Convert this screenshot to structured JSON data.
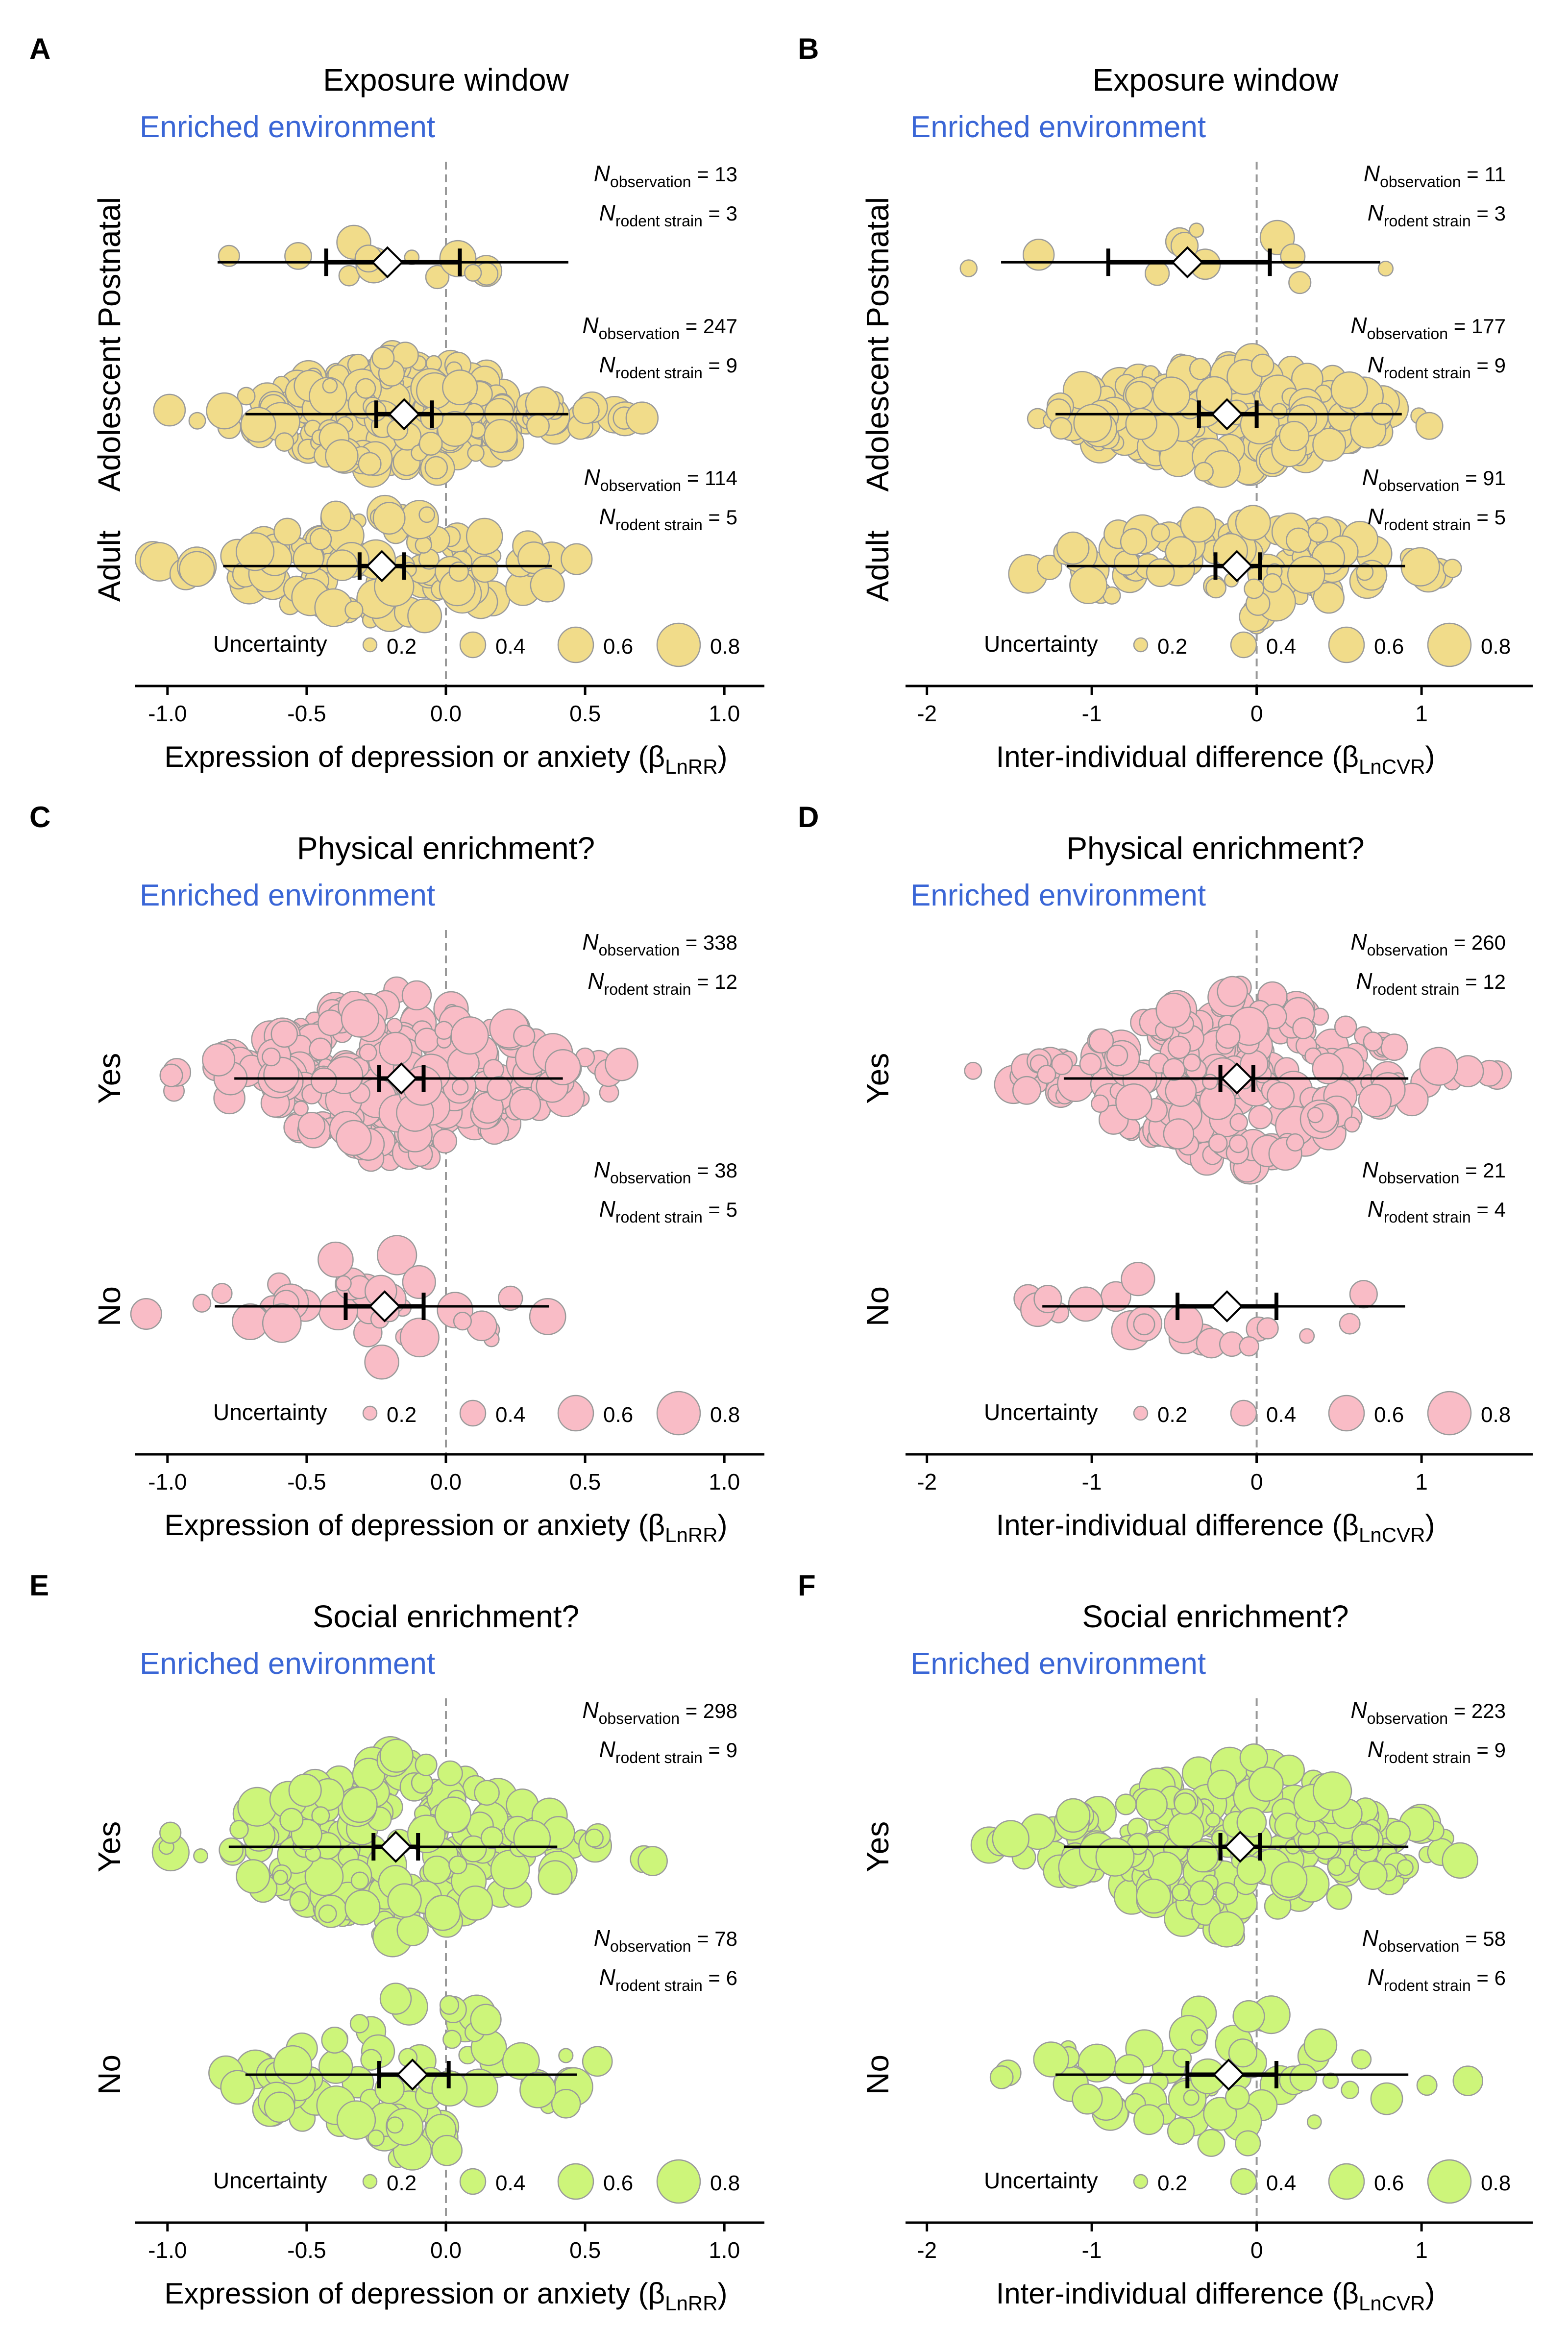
{
  "figure": {
    "panels": [
      {
        "id": "A",
        "title": "Exposure window",
        "subtitle": "Enriched environment",
        "subtitle_color": "#3a66d6",
        "xlabel_main": "Expression of depression or anxiety (",
        "xlabel_sub": "LnRR",
        "xlabel_greek": "β",
        "ticks": [
          "-1.0",
          "-0.5",
          "0.0",
          "0.5",
          "1.0"
        ],
        "tick_values": [
          -1.0,
          -0.5,
          0.0,
          0.5,
          1.0
        ],
        "bubble_color": "#f1dc8a",
        "legend": {
          "label": "Uncertainty",
          "values": [
            "0.2",
            "0.4",
            "0.6",
            "0.8"
          ]
        },
        "groups": [
          {
            "label": "Postnatal",
            "n_observation": "13",
            "n_rodent_strain": "3"
          },
          {
            "label": "Adolescent",
            "n_observation": "247",
            "n_rodent_strain": "9"
          },
          {
            "label": "Adult",
            "n_observation": "114",
            "n_rodent_strain": "5"
          }
        ]
      },
      {
        "id": "B",
        "title": "Exposure window",
        "subtitle": "Enriched environment",
        "subtitle_color": "#3a66d6",
        "xlabel_main": "Inter-individual difference (",
        "xlabel_sub": "LnCVR",
        "xlabel_greek": "β",
        "ticks": [
          "-2",
          "-1",
          "0",
          "1"
        ],
        "tick_values": [
          -2,
          -1,
          0,
          1
        ],
        "bubble_color": "#f1dc8a",
        "legend": {
          "label": "Uncertainty",
          "values": [
            "0.2",
            "0.4",
            "0.6",
            "0.8"
          ]
        },
        "groups": [
          {
            "label": "Postnatal",
            "n_observation": "11",
            "n_rodent_strain": "3"
          },
          {
            "label": "Adolescent",
            "n_observation": "177",
            "n_rodent_strain": "9"
          },
          {
            "label": "Adult",
            "n_observation": "91",
            "n_rodent_strain": "5"
          }
        ]
      },
      {
        "id": "C",
        "title": "Physical enrichment?",
        "subtitle": "Enriched environment",
        "subtitle_color": "#3a66d6",
        "xlabel_main": "Expression of depression or anxiety (",
        "xlabel_sub": "LnRR",
        "xlabel_greek": "β",
        "ticks": [
          "-1.0",
          "-0.5",
          "0.0",
          "0.5",
          "1.0"
        ],
        "tick_values": [
          -1.0,
          -0.5,
          0.0,
          0.5,
          1.0
        ],
        "bubble_color": "#f9bcc6",
        "legend": {
          "label": "Uncertainty",
          "values": [
            "0.2",
            "0.4",
            "0.6",
            "0.8"
          ]
        },
        "groups": [
          {
            "label": "Yes",
            "n_observation": "338",
            "n_rodent_strain": "12"
          },
          {
            "label": "No",
            "n_observation": "38",
            "n_rodent_strain": "5"
          }
        ]
      },
      {
        "id": "D",
        "title": "Physical enrichment?",
        "subtitle": "Enriched environment",
        "subtitle_color": "#3a66d6",
        "xlabel_main": "Inter-individual difference (",
        "xlabel_sub": "LnCVR",
        "xlabel_greek": "β",
        "ticks": [
          "-2",
          "-1",
          "0",
          "1"
        ],
        "tick_values": [
          -2,
          -1,
          0,
          1
        ],
        "bubble_color": "#f9bcc6",
        "legend": {
          "label": "Uncertainty",
          "values": [
            "0.2",
            "0.4",
            "0.6",
            "0.8"
          ]
        },
        "groups": [
          {
            "label": "Yes",
            "n_observation": "260",
            "n_rodent_strain": "12"
          },
          {
            "label": "No",
            "n_observation": "21",
            "n_rodent_strain": "4"
          }
        ]
      },
      {
        "id": "E",
        "title": "Social enrichment?",
        "subtitle": "Enriched environment",
        "subtitle_color": "#3a66d6",
        "xlabel_main": "Expression of depression or anxiety (",
        "xlabel_sub": "LnRR",
        "xlabel_greek": "β",
        "ticks": [
          "-1.0",
          "-0.5",
          "0.0",
          "0.5",
          "1.0"
        ],
        "tick_values": [
          -1.0,
          -0.5,
          0.0,
          0.5,
          1.0
        ],
        "bubble_color": "#cdf57a",
        "legend": {
          "label": "Uncertainty",
          "values": [
            "0.2",
            "0.4",
            "0.6",
            "0.8"
          ]
        },
        "groups": [
          {
            "label": "Yes",
            "n_observation": "298",
            "n_rodent_strain": "9"
          },
          {
            "label": "No",
            "n_observation": "78",
            "n_rodent_strain": "6"
          }
        ]
      },
      {
        "id": "F",
        "title": "Social enrichment?",
        "subtitle": "Enriched environment",
        "subtitle_color": "#3a66d6",
        "xlabel_main": "Inter-individual difference (",
        "xlabel_sub": "LnCVR",
        "xlabel_greek": "β",
        "ticks": [
          "-2",
          "-1",
          "0",
          "1"
        ],
        "tick_values": [
          -2,
          -1,
          0,
          1
        ],
        "bubble_color": "#cdf57a",
        "legend": {
          "label": "Uncertainty",
          "values": [
            "0.2",
            "0.4",
            "0.6",
            "0.8"
          ]
        },
        "groups": [
          {
            "label": "Yes",
            "n_observation": "223",
            "n_rodent_strain": "9"
          },
          {
            "label": "No",
            "n_observation": "58",
            "n_rodent_strain": "6"
          }
        ]
      }
    ]
  },
  "chart_data": [
    {
      "type": "scatter",
      "panel": "A",
      "xlim": [
        -1.1,
        1.1
      ],
      "reference_line": 0,
      "groups": [
        {
          "name": "Postnatal",
          "estimate": -0.21,
          "ci": [
            -0.43,
            0.05
          ],
          "pi": [
            -0.82,
            0.44
          ]
        },
        {
          "name": "Adolescent",
          "estimate": -0.15,
          "ci": [
            -0.25,
            -0.05
          ],
          "pi": [
            -0.72,
            0.44
          ]
        },
        {
          "name": "Adult",
          "estimate": -0.23,
          "ci": [
            -0.31,
            -0.15
          ],
          "pi": [
            -0.8,
            0.38
          ]
        }
      ]
    },
    {
      "type": "scatter",
      "panel": "B",
      "xlim": [
        -2.1,
        1.6
      ],
      "reference_line": 0,
      "groups": [
        {
          "name": "Postnatal",
          "estimate": -0.42,
          "ci": [
            -0.9,
            0.08
          ],
          "pi": [
            -1.55,
            0.75
          ]
        },
        {
          "name": "Adolescent",
          "estimate": -0.18,
          "ci": [
            -0.35,
            0.0
          ],
          "pi": [
            -1.22,
            0.88
          ]
        },
        {
          "name": "Adult",
          "estimate": -0.12,
          "ci": [
            -0.25,
            0.02
          ],
          "pi": [
            -1.15,
            0.9
          ]
        }
      ]
    },
    {
      "type": "scatter",
      "panel": "C",
      "xlim": [
        -1.1,
        1.1
      ],
      "reference_line": 0,
      "groups": [
        {
          "name": "Yes",
          "estimate": -0.16,
          "ci": [
            -0.24,
            -0.08
          ],
          "pi": [
            -0.76,
            0.42
          ]
        },
        {
          "name": "No",
          "estimate": -0.22,
          "ci": [
            -0.36,
            -0.08
          ],
          "pi": [
            -0.83,
            0.37
          ]
        }
      ]
    },
    {
      "type": "scatter",
      "panel": "D",
      "xlim": [
        -2.1,
        1.6
      ],
      "reference_line": 0,
      "groups": [
        {
          "name": "Yes",
          "estimate": -0.12,
          "ci": [
            -0.22,
            -0.02
          ],
          "pi": [
            -1.17,
            0.92
          ]
        },
        {
          "name": "No",
          "estimate": -0.18,
          "ci": [
            -0.48,
            0.12
          ],
          "pi": [
            -1.3,
            0.9
          ]
        }
      ]
    },
    {
      "type": "scatter",
      "panel": "E",
      "xlim": [
        -1.1,
        1.1
      ],
      "reference_line": 0,
      "groups": [
        {
          "name": "Yes",
          "estimate": -0.18,
          "ci": [
            -0.26,
            -0.1
          ],
          "pi": [
            -0.78,
            0.4
          ]
        },
        {
          "name": "No",
          "estimate": -0.12,
          "ci": [
            -0.24,
            0.01
          ],
          "pi": [
            -0.72,
            0.47
          ]
        }
      ]
    },
    {
      "type": "scatter",
      "panel": "F",
      "xlim": [
        -2.1,
        1.6
      ],
      "reference_line": 0,
      "groups": [
        {
          "name": "Yes",
          "estimate": -0.1,
          "ci": [
            -0.22,
            0.02
          ],
          "pi": [
            -1.17,
            0.92
          ]
        },
        {
          "name": "No",
          "estimate": -0.17,
          "ci": [
            -0.42,
            0.12
          ],
          "pi": [
            -1.22,
            0.92
          ]
        }
      ]
    }
  ]
}
